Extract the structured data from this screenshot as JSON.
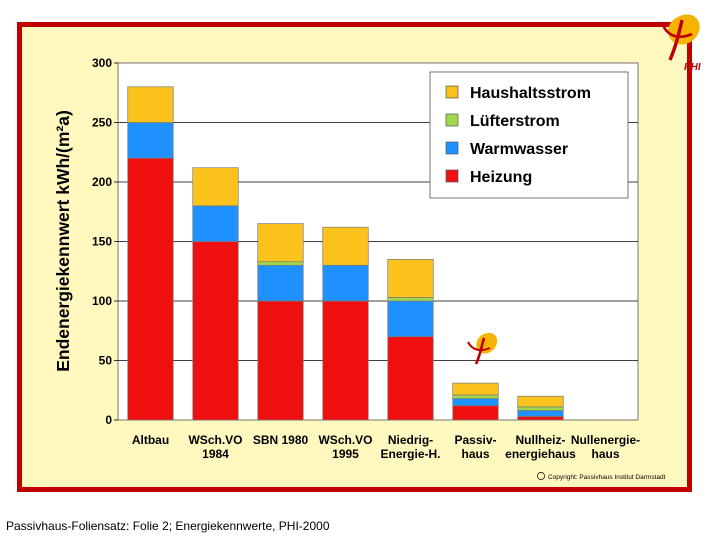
{
  "footer": "Passivhaus-Foliensatz: Folie 2; Energiekennwerte, PHI-2000",
  "logo": {
    "text": "PHI"
  },
  "copyright": "Copyright: Passivhaus Institut Darmstadt",
  "colors": {
    "frame": "#c00000",
    "panel": "#fff8bf",
    "haushaltsstrom": "#fbc31b",
    "luefterstrom": "#9fd84a",
    "warmwasser": "#1e90ff",
    "heizung": "#f00f0f",
    "logo": "#f5b400"
  },
  "chart_data": {
    "type": "bar",
    "stacked": true,
    "ylabel": "Endenergiekennwert kWh/(m²a)",
    "ylim": [
      0,
      300
    ],
    "yticks": [
      "0",
      "50",
      "100",
      "150",
      "200",
      "250",
      "300"
    ],
    "grid": true,
    "legend_placement": "top-right",
    "categories": [
      [
        "Altbau"
      ],
      [
        "WSch.VO",
        "1984"
      ],
      [
        "SBN 1980"
      ],
      [
        "WSch.VO",
        "1995"
      ],
      [
        "Niedrig-",
        "Energie-H."
      ],
      [
        "Passiv-",
        "haus"
      ],
      [
        "Nullheiz-",
        "energiehaus"
      ],
      [
        "Nullenergie-",
        "haus"
      ]
    ],
    "series": [
      {
        "name": "Heizung",
        "color": "#f00f0f",
        "values": [
          220,
          150,
          100,
          100,
          70,
          12,
          3,
          0
        ]
      },
      {
        "name": "Warmwasser",
        "color": "#1e90ff",
        "values": [
          30,
          30,
          30,
          30,
          30,
          6,
          5,
          0
        ]
      },
      {
        "name": "Lüfterstrom",
        "color": "#9fd84a",
        "values": [
          0,
          0,
          3,
          0,
          3,
          3,
          3,
          0
        ]
      },
      {
        "name": "Haushaltsstrom",
        "color": "#fbc31b",
        "values": [
          30,
          32,
          32,
          32,
          32,
          10,
          9,
          0
        ]
      }
    ],
    "legend_order": [
      "Haushaltsstrom",
      "Lüfterstrom",
      "Warmwasser",
      "Heizung"
    ]
  }
}
